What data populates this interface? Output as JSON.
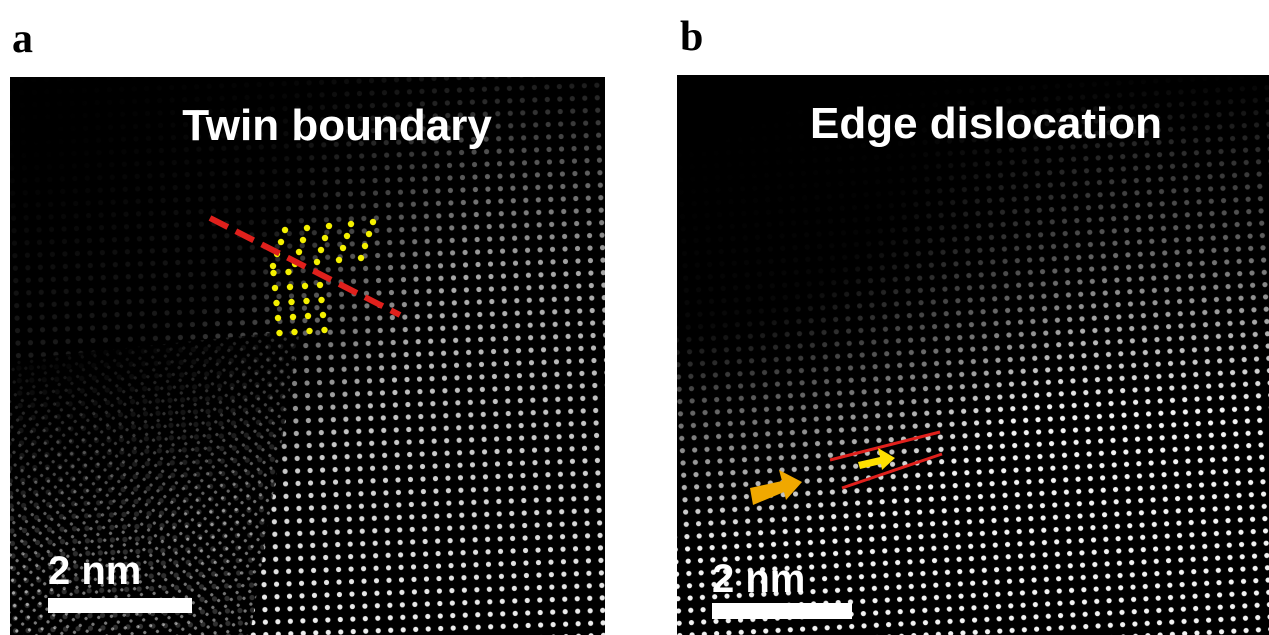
{
  "panels": [
    {
      "label": "a",
      "title": "Twin boundary",
      "scale_bar": "2 nm"
    },
    {
      "label": "b",
      "title": "Edge dislocation",
      "scale_bar": "2 nm"
    }
  ]
}
